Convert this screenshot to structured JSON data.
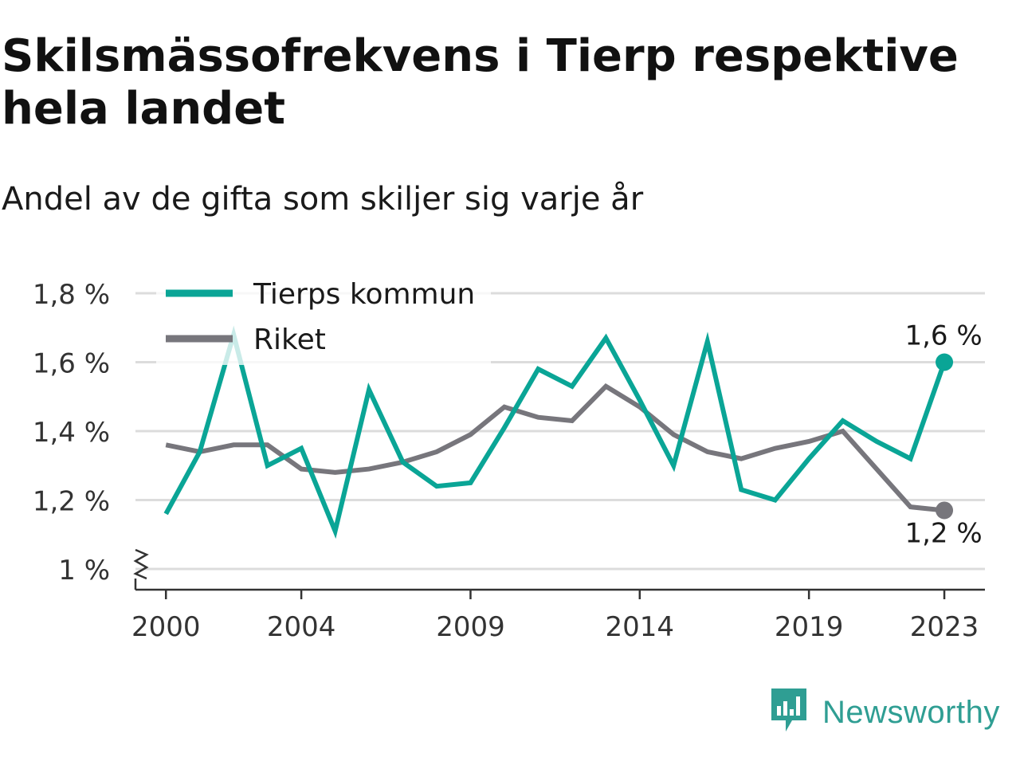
{
  "header": {
    "title": "Skilsmässofrekvens i Tierp respektive hela landet",
    "subtitle": "Andel av de gifta som skiljer sig varje år"
  },
  "brand": {
    "name": "Newsworthy",
    "icon": "newsworthy-logo-icon",
    "color": "#2f9e93"
  },
  "chart_data": {
    "type": "line",
    "x": [
      2000,
      2001,
      2002,
      2003,
      2004,
      2005,
      2006,
      2007,
      2008,
      2009,
      2010,
      2011,
      2012,
      2013,
      2014,
      2015,
      2016,
      2017,
      2018,
      2019,
      2020,
      2021,
      2022,
      2023
    ],
    "x_ticks": [
      2000,
      2004,
      2009,
      2014,
      2019,
      2023
    ],
    "x_tick_labels": [
      "2000",
      "2004",
      "2009",
      "2014",
      "2019",
      "2023"
    ],
    "xlim": [
      1999.1,
      2024.2
    ],
    "ylim": [
      1.0,
      1.8
    ],
    "y_ticks": [
      1.0,
      1.2,
      1.4,
      1.6,
      1.8
    ],
    "y_tick_labels": [
      "1 %",
      "1,2 %",
      "1,4 %",
      "1,6 %",
      "1,8 %"
    ],
    "y_axis_break": true,
    "grid": true,
    "legend": "top-left",
    "series": [
      {
        "name": "Tierps kommun",
        "color": "#0aa596",
        "values": [
          1.16,
          1.34,
          1.68,
          1.3,
          1.35,
          1.11,
          1.52,
          1.31,
          1.24,
          1.25,
          1.41,
          1.58,
          1.53,
          1.67,
          1.49,
          1.3,
          1.66,
          1.23,
          1.2,
          1.32,
          1.43,
          1.37,
          1.32,
          1.6
        ],
        "end_label": "1,6 %"
      },
      {
        "name": "Riket",
        "color": "#77767c",
        "values": [
          1.36,
          1.34,
          1.36,
          1.36,
          1.29,
          1.28,
          1.29,
          1.31,
          1.34,
          1.39,
          1.47,
          1.44,
          1.43,
          1.53,
          1.47,
          1.39,
          1.34,
          1.32,
          1.35,
          1.37,
          1.4,
          1.29,
          1.18,
          1.17
        ],
        "end_label": "1,2 %"
      }
    ]
  }
}
